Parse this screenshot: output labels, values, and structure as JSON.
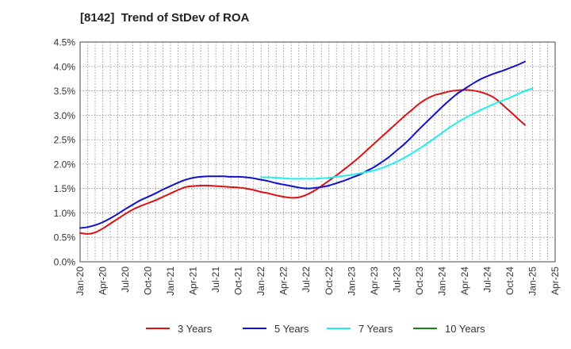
{
  "chart_data": {
    "type": "line",
    "title": "[8142]  Trend of StDev of ROA",
    "xlabel": "",
    "ylabel": "",
    "x_ticks": [
      "Jan-20",
      "Apr-20",
      "Jul-20",
      "Oct-20",
      "Jan-21",
      "Apr-21",
      "Jul-21",
      "Oct-21",
      "Jan-22",
      "Apr-22",
      "Jul-22",
      "Oct-22",
      "Jan-23",
      "Apr-23",
      "Jul-23",
      "Oct-23",
      "Jan-24",
      "Apr-24",
      "Jul-24",
      "Oct-24",
      "Jan-25",
      "Apr-25"
    ],
    "y_ticks": [
      "0.0%",
      "0.5%",
      "1.0%",
      "1.5%",
      "2.0%",
      "2.5%",
      "3.0%",
      "3.5%",
      "4.0%",
      "4.5%"
    ],
    "ylim": [
      0,
      4.5
    ],
    "grid": true,
    "legend_position": "bottom",
    "series": [
      {
        "name": "3 Years",
        "color": "#dd1111",
        "points": [
          [
            "Jan-20",
            0.59
          ],
          [
            "Feb-20",
            0.57
          ],
          [
            "Mar-20",
            0.6
          ],
          [
            "Apr-20",
            0.68
          ],
          [
            "May-20",
            0.78
          ],
          [
            "Jun-20",
            0.88
          ],
          [
            "Jul-20",
            0.98
          ],
          [
            "Aug-20",
            1.07
          ],
          [
            "Sep-20",
            1.14
          ],
          [
            "Oct-20",
            1.2
          ],
          [
            "Nov-20",
            1.26
          ],
          [
            "Dec-20",
            1.33
          ],
          [
            "Jan-21",
            1.4
          ],
          [
            "Feb-21",
            1.47
          ],
          [
            "Mar-21",
            1.53
          ],
          [
            "Apr-21",
            1.55
          ],
          [
            "May-21",
            1.56
          ],
          [
            "Jun-21",
            1.56
          ],
          [
            "Jul-21",
            1.55
          ],
          [
            "Aug-21",
            1.54
          ],
          [
            "Sep-21",
            1.53
          ],
          [
            "Oct-21",
            1.52
          ],
          [
            "Nov-21",
            1.5
          ],
          [
            "Dec-21",
            1.47
          ],
          [
            "Jan-22",
            1.43
          ],
          [
            "Feb-22",
            1.4
          ],
          [
            "Mar-22",
            1.36
          ],
          [
            "Apr-22",
            1.33
          ],
          [
            "May-22",
            1.31
          ],
          [
            "Jun-22",
            1.32
          ],
          [
            "Jul-22",
            1.37
          ],
          [
            "Aug-22",
            1.45
          ],
          [
            "Sep-22",
            1.55
          ],
          [
            "Oct-22",
            1.66
          ],
          [
            "Nov-22",
            1.77
          ],
          [
            "Dec-22",
            1.89
          ],
          [
            "Jan-23",
            2.01
          ],
          [
            "Feb-23",
            2.14
          ],
          [
            "Mar-23",
            2.28
          ],
          [
            "Apr-23",
            2.42
          ],
          [
            "May-23",
            2.56
          ],
          [
            "Jun-23",
            2.7
          ],
          [
            "Jul-23",
            2.84
          ],
          [
            "Aug-23",
            2.98
          ],
          [
            "Sep-23",
            3.11
          ],
          [
            "Oct-23",
            3.24
          ],
          [
            "Nov-23",
            3.34
          ],
          [
            "Dec-23",
            3.41
          ],
          [
            "Jan-24",
            3.45
          ],
          [
            "Feb-24",
            3.49
          ],
          [
            "Mar-24",
            3.51
          ],
          [
            "Apr-24",
            3.52
          ],
          [
            "May-24",
            3.51
          ],
          [
            "Jun-24",
            3.48
          ],
          [
            "Jul-24",
            3.43
          ],
          [
            "Aug-24",
            3.35
          ],
          [
            "Sep-24",
            3.22
          ],
          [
            "Oct-24",
            3.08
          ],
          [
            "Nov-24",
            2.94
          ],
          [
            "Dec-24",
            2.8
          ]
        ]
      },
      {
        "name": "5 Years",
        "color": "#1111cc",
        "points": [
          [
            "Jan-20",
            0.69
          ],
          [
            "Feb-20",
            0.71
          ],
          [
            "Mar-20",
            0.75
          ],
          [
            "Apr-20",
            0.81
          ],
          [
            "May-20",
            0.89
          ],
          [
            "Jun-20",
            0.98
          ],
          [
            "Jul-20",
            1.08
          ],
          [
            "Aug-20",
            1.17
          ],
          [
            "Sep-20",
            1.26
          ],
          [
            "Oct-20",
            1.33
          ],
          [
            "Nov-20",
            1.4
          ],
          [
            "Dec-20",
            1.48
          ],
          [
            "Jan-21",
            1.55
          ],
          [
            "Feb-21",
            1.62
          ],
          [
            "Mar-21",
            1.68
          ],
          [
            "Apr-21",
            1.72
          ],
          [
            "May-21",
            1.74
          ],
          [
            "Jun-21",
            1.75
          ],
          [
            "Jul-21",
            1.75
          ],
          [
            "Aug-21",
            1.75
          ],
          [
            "Sep-21",
            1.74
          ],
          [
            "Oct-21",
            1.74
          ],
          [
            "Nov-21",
            1.73
          ],
          [
            "Dec-21",
            1.71
          ],
          [
            "Jan-22",
            1.68
          ],
          [
            "Feb-22",
            1.65
          ],
          [
            "Mar-22",
            1.61
          ],
          [
            "Apr-22",
            1.58
          ],
          [
            "May-22",
            1.55
          ],
          [
            "Jun-22",
            1.52
          ],
          [
            "Jul-22",
            1.5
          ],
          [
            "Aug-22",
            1.51
          ],
          [
            "Sep-22",
            1.53
          ],
          [
            "Oct-22",
            1.56
          ],
          [
            "Nov-22",
            1.61
          ],
          [
            "Dec-22",
            1.66
          ],
          [
            "Jan-23",
            1.72
          ],
          [
            "Feb-23",
            1.78
          ],
          [
            "Mar-23",
            1.86
          ],
          [
            "Apr-23",
            1.94
          ],
          [
            "May-23",
            2.04
          ],
          [
            "Jun-23",
            2.15
          ],
          [
            "Jul-23",
            2.28
          ],
          [
            "Aug-23",
            2.41
          ],
          [
            "Sep-23",
            2.56
          ],
          [
            "Oct-23",
            2.72
          ],
          [
            "Nov-23",
            2.87
          ],
          [
            "Dec-23",
            3.02
          ],
          [
            "Jan-24",
            3.17
          ],
          [
            "Feb-24",
            3.31
          ],
          [
            "Mar-24",
            3.44
          ],
          [
            "Apr-24",
            3.54
          ],
          [
            "May-24",
            3.64
          ],
          [
            "Jun-24",
            3.73
          ],
          [
            "Jul-24",
            3.8
          ],
          [
            "Aug-24",
            3.86
          ],
          [
            "Sep-24",
            3.91
          ],
          [
            "Oct-24",
            3.97
          ],
          [
            "Nov-24",
            4.03
          ],
          [
            "Dec-24",
            4.1
          ]
        ]
      },
      {
        "name": "7 Years",
        "color": "#22eeee",
        "points": [
          [
            "Jan-22",
            1.73
          ],
          [
            "Feb-22",
            1.73
          ],
          [
            "Mar-22",
            1.72
          ],
          [
            "Apr-22",
            1.71
          ],
          [
            "May-22",
            1.7
          ],
          [
            "Jun-22",
            1.7
          ],
          [
            "Jul-22",
            1.7
          ],
          [
            "Aug-22",
            1.7
          ],
          [
            "Sep-22",
            1.71
          ],
          [
            "Oct-22",
            1.72
          ],
          [
            "Nov-22",
            1.74
          ],
          [
            "Dec-22",
            1.76
          ],
          [
            "Jan-23",
            1.78
          ],
          [
            "Feb-23",
            1.81
          ],
          [
            "Mar-23",
            1.84
          ],
          [
            "Apr-23",
            1.87
          ],
          [
            "May-23",
            1.92
          ],
          [
            "Jun-23",
            1.98
          ],
          [
            "Jul-23",
            2.05
          ],
          [
            "Aug-23",
            2.13
          ],
          [
            "Sep-23",
            2.22
          ],
          [
            "Oct-23",
            2.32
          ],
          [
            "Nov-23",
            2.42
          ],
          [
            "Dec-23",
            2.53
          ],
          [
            "Jan-24",
            2.64
          ],
          [
            "Feb-24",
            2.75
          ],
          [
            "Mar-24",
            2.85
          ],
          [
            "Apr-24",
            2.94
          ],
          [
            "May-24",
            3.02
          ],
          [
            "Jun-24",
            3.1
          ],
          [
            "Jul-24",
            3.17
          ],
          [
            "Aug-24",
            3.24
          ],
          [
            "Sep-24",
            3.3
          ],
          [
            "Oct-24",
            3.36
          ],
          [
            "Nov-24",
            3.43
          ],
          [
            "Dec-24",
            3.5
          ],
          [
            "Jan-25",
            3.55
          ]
        ]
      },
      {
        "name": "10 Years",
        "color": "#118811",
        "points": []
      }
    ]
  }
}
